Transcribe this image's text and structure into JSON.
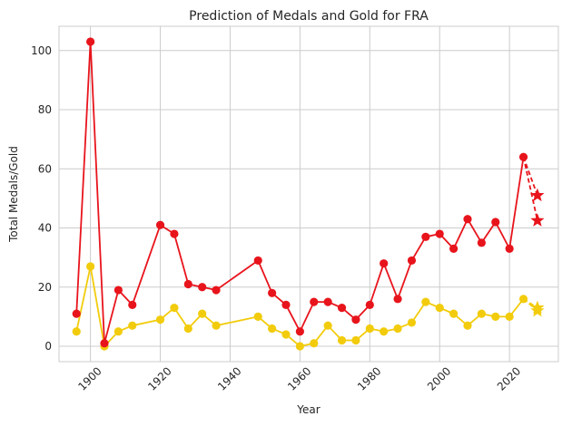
{
  "chart_data": {
    "type": "line",
    "title": "Prediction of Medals and Gold for FRA",
    "xlabel": "Year",
    "ylabel": "Total Medals/Gold",
    "xlim": [
      1891,
      2034
    ],
    "ylim": [
      -5.2,
      108.2
    ],
    "xticks": [
      1900,
      1920,
      1940,
      1960,
      1980,
      2000,
      2020
    ],
    "yticks": [
      0,
      20,
      40,
      60,
      80,
      100
    ],
    "x_tick_rotation": 45,
    "grid": true,
    "series": [
      {
        "key": "total",
        "color": "#e8141c",
        "x": [
          1896,
          1900,
          1904,
          1908,
          1912,
          1920,
          1924,
          1928,
          1932,
          1936,
          1948,
          1952,
          1956,
          1960,
          1964,
          1968,
          1972,
          1976,
          1980,
          1984,
          1988,
          1992,
          1996,
          2000,
          2004,
          2008,
          2012,
          2016,
          2020,
          2024
        ],
        "values": [
          11,
          103,
          1,
          19,
          14,
          41,
          38,
          21,
          20,
          19,
          29,
          18,
          14,
          5,
          15,
          15,
          13,
          9,
          14,
          28,
          16,
          29,
          37,
          38,
          33,
          43,
          35,
          42,
          33,
          64
        ]
      },
      {
        "key": "gold",
        "color": "#f2cc0c",
        "x": [
          1896,
          1900,
          1904,
          1908,
          1912,
          1920,
          1924,
          1928,
          1932,
          1936,
          1948,
          1952,
          1956,
          1960,
          1964,
          1968,
          1972,
          1976,
          1980,
          1984,
          1988,
          1992,
          1996,
          2000,
          2004,
          2008,
          2012,
          2016,
          2020,
          2024
        ],
        "values": [
          5,
          27,
          0,
          5,
          7,
          9,
          13,
          6,
          11,
          7,
          10,
          6,
          4,
          0,
          1,
          7,
          2,
          2,
          6,
          5,
          6,
          8,
          15,
          13,
          11,
          7,
          11,
          10,
          10,
          16
        ]
      }
    ],
    "predictions": [
      {
        "key": "total",
        "color": "#e8141c",
        "from": [
          2024,
          64
        ],
        "x": 2028,
        "values": [
          51,
          42.5
        ]
      },
      {
        "key": "gold",
        "color": "#f2cc0c",
        "from": [
          2024,
          16
        ],
        "x": 2028,
        "values": [
          13,
          12
        ]
      }
    ]
  }
}
